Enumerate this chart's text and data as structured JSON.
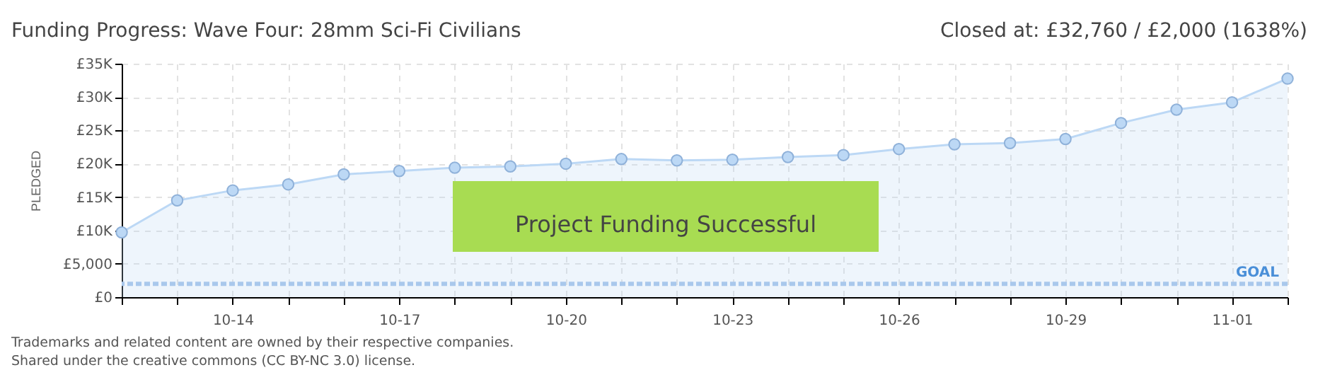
{
  "chart_data": {
    "type": "area",
    "title": "Funding Progress: Wave Four: 28mm Sci-Fi Civilians",
    "subtitle": "Closed at:  £32,760 / £2,000 (1638%)",
    "ylabel": "PLEDGED",
    "x": [
      "--10-12",
      "--10-13",
      "--10-14",
      "--10-15",
      "--10-16",
      "--10-17",
      "--10-18",
      "--10-19",
      "--10-20",
      "--10-21",
      "--10-22",
      "--10-23",
      "--10-24",
      "--10-25",
      "--10-26",
      "--10-27",
      "--10-28",
      "--10-29",
      "--10-30",
      "--10-31",
      "--11-01",
      "--11-02"
    ],
    "series": [
      {
        "color": "#bcd8f5",
        "values": [
          9700,
          14500,
          16000,
          16900,
          18400,
          18900,
          19400,
          19600,
          20000,
          20700,
          20500,
          20600,
          21000,
          21300,
          22200,
          22900,
          23100,
          23700,
          26100,
          28100,
          29200,
          32760
        ]
      }
    ],
    "xlim": [
      "--10-12",
      "--11-02"
    ],
    "xticks": [
      {
        "value": "--10-12",
        "label": null
      },
      {
        "value": "--10-13",
        "label": null
      },
      {
        "value": "--10-14",
        "label": "10-14"
      },
      {
        "value": "--10-15",
        "label": null
      },
      {
        "value": "--10-16",
        "label": null
      },
      {
        "value": "--10-17",
        "label": "10-17"
      },
      {
        "value": "--10-18",
        "label": null
      },
      {
        "value": "--10-19",
        "label": null
      },
      {
        "value": "--10-20",
        "label": "10-20"
      },
      {
        "value": "--10-21",
        "label": null
      },
      {
        "value": "--10-22",
        "label": null
      },
      {
        "value": "--10-23",
        "label": "10-23"
      },
      {
        "value": "--10-24",
        "label": null
      },
      {
        "value": "--10-25",
        "label": null
      },
      {
        "value": "--10-26",
        "label": "10-26"
      },
      {
        "value": "--10-27",
        "label": null
      },
      {
        "value": "--10-28",
        "label": null
      },
      {
        "value": "--10-29",
        "label": "10-29"
      },
      {
        "value": "--10-30",
        "label": null
      },
      {
        "value": "--10-31",
        "label": null
      },
      {
        "value": "--11-01",
        "label": "11-01"
      },
      {
        "value": "--11-02",
        "label": null
      }
    ],
    "ylim": [
      0,
      35000
    ],
    "yticks": [
      {
        "value": 0,
        "label": "£0"
      },
      {
        "value": 5000,
        "label": "£5,000"
      },
      {
        "value": 10000,
        "label": "£10K"
      },
      {
        "value": 15000,
        "label": "£15K"
      },
      {
        "value": 20000,
        "label": "£20K"
      },
      {
        "value": 25000,
        "label": "£25K"
      },
      {
        "value": 30000,
        "label": "£30K"
      },
      {
        "value": 35000,
        "label": "£35K"
      }
    ],
    "ref_lines": [
      {
        "axis": "y",
        "value": 2000,
        "label": "GOAL",
        "color": "#a9c8ec",
        "line_style": "dashed"
      }
    ],
    "annotations": [
      "Project Funding Successful",
      "Trademarks and related content are owned by their respective companies.",
      "Shared under the creative commons (CC BY-NC 3.0) license."
    ],
    "grid": true,
    "marker": "circle",
    "line_style": "solid"
  }
}
